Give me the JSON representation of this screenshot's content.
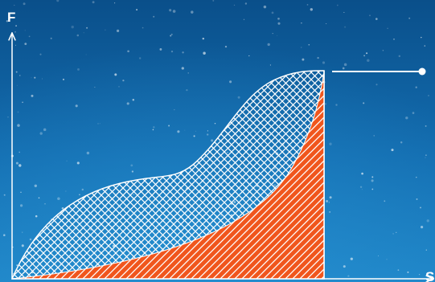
{
  "axes": {
    "y_label": "F",
    "x_label": "S"
  },
  "colors": {
    "background_light": "#1f86c8",
    "background_dark": "#0a4f8a",
    "axis": "#ffffff",
    "upper_region_hatch": "#ffffff",
    "lower_region_fill": "#f0561d",
    "lower_region_hatch": "#ffffff",
    "callout": "#ffffff"
  },
  "regions": [
    {
      "name": "upper-region",
      "style": "white crosshatch"
    },
    {
      "name": "lower-region",
      "style": "orange with diagonal hatch"
    }
  ]
}
